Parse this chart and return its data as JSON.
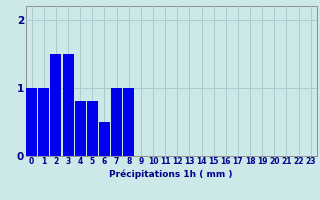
{
  "categories": [
    0,
    1,
    2,
    3,
    4,
    5,
    6,
    7,
    8,
    9,
    10,
    11,
    12,
    13,
    14,
    15,
    16,
    17,
    18,
    19,
    20,
    21,
    22,
    23
  ],
  "values": [
    1.0,
    1.0,
    1.5,
    1.5,
    0.8,
    0.8,
    0.5,
    1.0,
    1.0,
    0.0,
    0.0,
    0.0,
    0.0,
    0.0,
    0.0,
    0.0,
    0.0,
    0.0,
    0.0,
    0.0,
    0.0,
    0.0,
    0.0,
    0.0
  ],
  "bar_color": "#0000ee",
  "background_color": "#cce8e8",
  "grid_color": "#aacccc",
  "xlabel": "Précipitations 1h ( mm )",
  "xlabel_color": "#00008b",
  "tick_color": "#00008b",
  "ylim": [
    0,
    2.2
  ],
  "yticks": [
    0,
    1,
    2
  ],
  "bar_width": 0.9,
  "xlabel_fontsize": 6.5,
  "tick_fontsize": 5.5
}
